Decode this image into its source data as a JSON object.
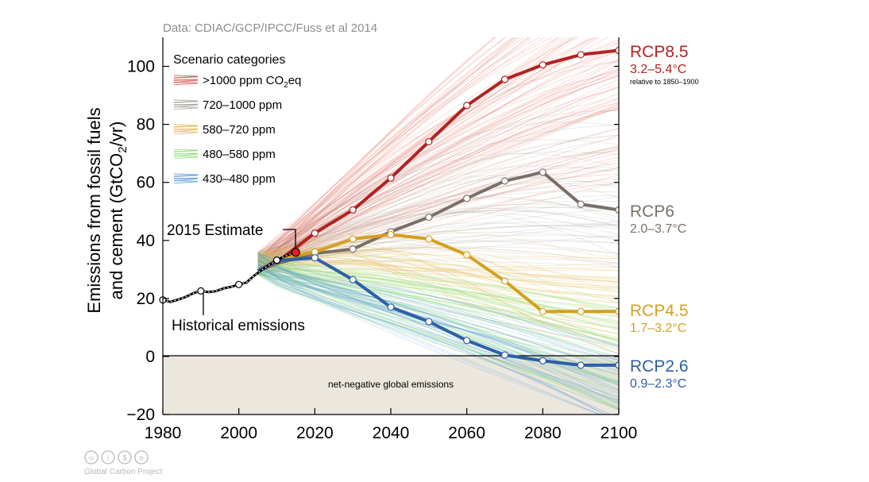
{
  "source_note": "Data: CDIAC/GCP/IPCC/Fuss et al 2014",
  "legend": {
    "title": "Scenario categories",
    "items": [
      {
        "label": ">1000 ppm CO",
        "sub": "2",
        "suffix": "eq",
        "color": "#d9534f"
      },
      {
        "label": "720–1000 ppm",
        "color": "#a8a29a"
      },
      {
        "label": "580–720 ppm",
        "color": "#e8b84a"
      },
      {
        "label": "480–580 ppm",
        "color": "#8fe07a"
      },
      {
        "label": "430–480 ppm",
        "color": "#5b9bd5"
      }
    ]
  },
  "annotations": {
    "estimate": "2015 Estimate",
    "historical": "Historical emissions",
    "net_negative": "net-negative global emissions",
    "relative": "relative to 1850–1900"
  },
  "rcp_labels": [
    {
      "name": "RCP8.5",
      "range": "3.2–5.4°C",
      "color": "#b22222"
    },
    {
      "name": "RCP6",
      "range": "2.0–3.7°C",
      "color": "#7a7068"
    },
    {
      "name": "RCP4.5",
      "range": "1.7–3.2°C",
      "color": "#d4a020"
    },
    {
      "name": "RCP2.6",
      "range": "0.9–2.3°C",
      "color": "#2e5fa8"
    }
  ],
  "logo": {
    "text": "Global Carbon Project"
  },
  "chart_data": {
    "type": "line",
    "ylabel_line1": "Emissions from fossil fuels",
    "ylabel_line2": "and cement (GtCO",
    "ylabel_sub": "2",
    "ylabel_end": "/yr)",
    "xlim": [
      1980,
      2100
    ],
    "ylim": [
      -20,
      110
    ],
    "x_ticks": [
      1980,
      2000,
      2020,
      2040,
      2060,
      2080,
      2100
    ],
    "y_ticks": [
      -20,
      0,
      20,
      40,
      60,
      80,
      100
    ],
    "historical": {
      "x": [
        1980,
        1982,
        1984,
        1986,
        1988,
        1990,
        1992,
        1994,
        1996,
        1998,
        2000,
        2002,
        2004,
        2006,
        2008,
        2010,
        2012,
        2014,
        2015
      ],
      "y": [
        19.5,
        18.8,
        19.6,
        20.5,
        21.8,
        22.6,
        22.2,
        22.5,
        23.5,
        24.0,
        24.8,
        25.5,
        27.8,
        29.8,
        31.5,
        33.2,
        34.5,
        35.5,
        35.7
      ]
    },
    "estimate_2015": {
      "x": 2015,
      "y": 35.9
    },
    "series": [
      {
        "name": "RCP8.5",
        "color": "#b22222",
        "x": [
          2005,
          2010,
          2020,
          2030,
          2040,
          2050,
          2060,
          2070,
          2080,
          2090,
          2100
        ],
        "y": [
          29.5,
          32.5,
          42.5,
          50.5,
          61.5,
          74,
          86.5,
          95.5,
          100.5,
          104,
          105.5
        ]
      },
      {
        "name": "RCP6",
        "color": "#7a7068",
        "x": [
          2005,
          2010,
          2020,
          2030,
          2040,
          2050,
          2060,
          2070,
          2080,
          2090,
          2100
        ],
        "y": [
          29.5,
          32,
          35.5,
          37,
          43,
          48,
          54.5,
          60.5,
          63.5,
          52.5,
          50.5
        ]
      },
      {
        "name": "RCP4.5",
        "color": "#d4a020",
        "x": [
          2005,
          2010,
          2020,
          2030,
          2040,
          2050,
          2060,
          2070,
          2080,
          2090,
          2100
        ],
        "y": [
          29.5,
          33.5,
          36,
          40.5,
          42,
          40.5,
          35,
          26,
          15.5,
          15.5,
          15.5
        ]
      },
      {
        "name": "RCP2.6",
        "color": "#2e5fa8",
        "x": [
          2005,
          2010,
          2020,
          2030,
          2040,
          2050,
          2060,
          2070,
          2080,
          2090,
          2100
        ],
        "y": [
          29.5,
          33,
          34,
          26.5,
          17,
          12,
          5.5,
          0.5,
          -1.5,
          -3,
          -3
        ]
      }
    ],
    "grid": false
  }
}
